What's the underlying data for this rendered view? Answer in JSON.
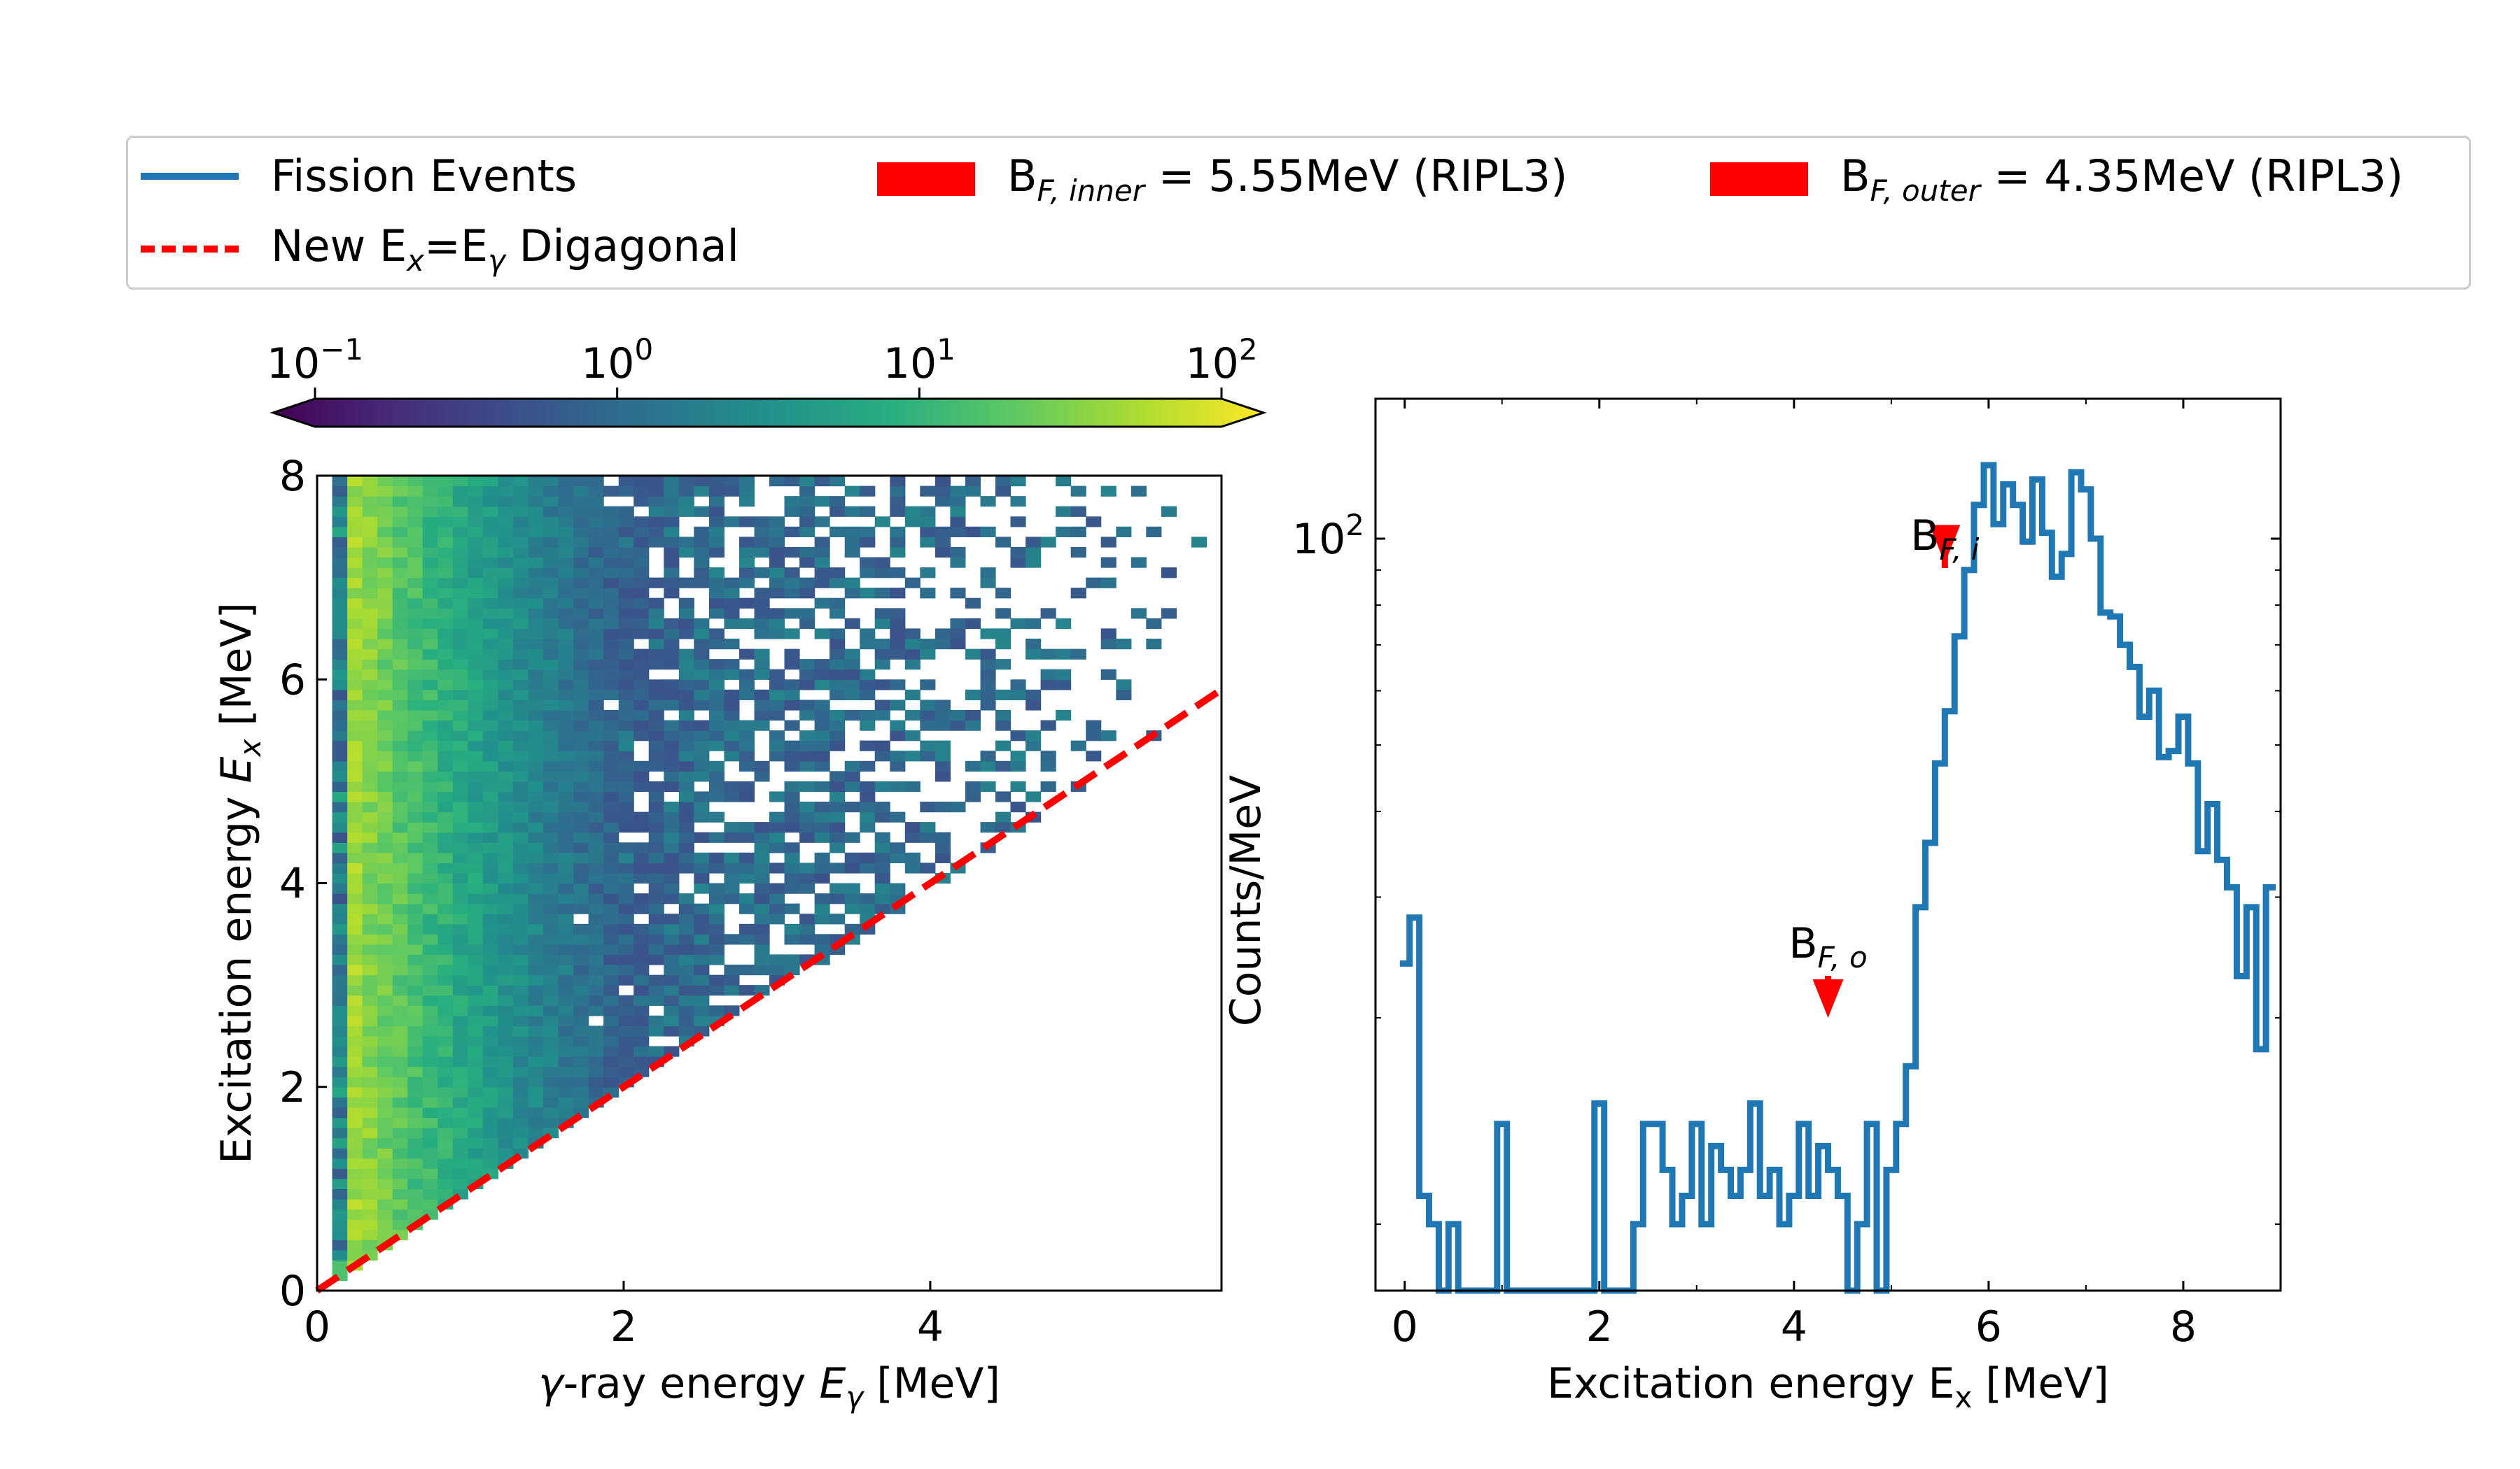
{
  "legend": {
    "fission": "Fission Events",
    "diag_pre": "New E",
    "diag_sub1": "x",
    "diag_mid": "=E",
    "diag_sub2": "γ",
    "diag_post": " Digagonal",
    "inner_pre": "B",
    "inner_sub": "F, inner",
    "inner_post": " = 5.55MeV (RIPL3)",
    "outer_pre": "B",
    "outer_sub": "F, outer",
    "outer_post": " = 4.35MeV (RIPL3)"
  },
  "colors": {
    "series": "#1f77b4",
    "barrier": "#ff0000",
    "diagonal": "#ff0000",
    "viridis": [
      "#440154",
      "#472d7b",
      "#3b528b",
      "#2c728e",
      "#21918c",
      "#28ae80",
      "#5ec962",
      "#addc30",
      "#fde725"
    ]
  },
  "chart_data": [
    {
      "type": "heatmap",
      "xlabel": "γ-ray energy E_γ [MeV]",
      "ylabel": "Excitation energy E_x [MeV]",
      "xlim": [
        0,
        5.9
      ],
      "ylim": [
        0,
        8
      ],
      "xticks": [
        "0",
        "2",
        "4"
      ],
      "xtick_values": [
        0,
        2,
        4
      ],
      "yticks": [
        "0",
        "2",
        "4",
        "6",
        "8"
      ],
      "ytick_values": [
        0,
        2,
        4,
        6,
        8
      ],
      "colorbar": {
        "scale": "log",
        "range": [
          0.1,
          100
        ],
        "ticks": [
          "10^-1",
          "10^0",
          "10^1",
          "10^2"
        ],
        "extend": "both",
        "placement": "top"
      },
      "bins": {
        "nx": 60,
        "ny": 80
      },
      "description_of_density": "counts concentrated at low E_γ (0.2–1 MeV), decreasing toward high E_γ; no counts above the diagonal",
      "diagonal": {
        "x": [
          0,
          5.9
        ],
        "y": [
          0,
          5.9
        ],
        "style": "dashed",
        "color": "#ff0000"
      }
    },
    {
      "type": "line",
      "drawstyle": "steps",
      "series_name": "Fission Events",
      "xlabel": "Excitation energy E_x [MeV]",
      "ylabel": "Counts/MeV",
      "xlim": [
        -0.3,
        9.0
      ],
      "yscale": "log",
      "ylim": [
        8,
        160
      ],
      "xticks": [
        "0",
        "2",
        "4",
        "6",
        "8"
      ],
      "xtick_values": [
        0,
        2,
        4,
        6,
        8
      ],
      "ytick_label": "10^2",
      "ytick_value": 100,
      "x": [
        0.0,
        0.1,
        0.2,
        0.3,
        0.4,
        0.5,
        0.6,
        0.9,
        1.0,
        1.1,
        1.9,
        2.0,
        2.1,
        2.3,
        2.4,
        2.5,
        2.7,
        2.8,
        2.9,
        3.0,
        3.1,
        3.2,
        3.3,
        3.4,
        3.5,
        3.6,
        3.7,
        3.8,
        3.9,
        4.0,
        4.1,
        4.2,
        4.3,
        4.4,
        4.5,
        4.6,
        4.7,
        4.8,
        4.9,
        5.0,
        5.1,
        5.2,
        5.3,
        5.4,
        5.5,
        5.6,
        5.7,
        5.8,
        5.9,
        6.0,
        6.1,
        6.2,
        6.3,
        6.4,
        6.5,
        6.6,
        6.7,
        6.8,
        6.9,
        7.0,
        7.1,
        7.2,
        7.3,
        7.4,
        7.5,
        7.6,
        7.7,
        7.8,
        7.9,
        8.0,
        8.1,
        8.2,
        8.3,
        8.4,
        8.5,
        8.6,
        8.7,
        8.8,
        8.9
      ],
      "values": [
        24,
        28,
        11,
        10,
        8,
        10,
        8,
        8,
        14,
        8,
        8,
        15,
        8,
        8,
        10,
        14,
        12,
        10,
        11,
        14,
        10,
        13,
        12,
        11,
        12,
        15,
        11,
        12,
        10,
        11,
        14,
        11,
        13,
        12,
        11,
        8,
        10,
        14,
        8,
        12,
        14,
        17,
        29,
        36,
        47,
        56,
        72,
        90,
        112,
        128,
        105,
        120,
        112,
        99,
        122,
        102,
        88,
        95,
        125,
        118,
        100,
        78,
        77,
        70,
        65,
        55,
        60,
        48,
        49,
        55,
        47,
        35,
        41,
        34,
        31,
        23,
        29,
        18,
        31
      ]
    }
  ],
  "annotations": {
    "bfi_pre": "B",
    "bfi_sub": "F, i",
    "bfi_x": 5.55,
    "bfo_pre": "B",
    "bfo_sub": "F, o",
    "bfo_x": 4.35
  }
}
